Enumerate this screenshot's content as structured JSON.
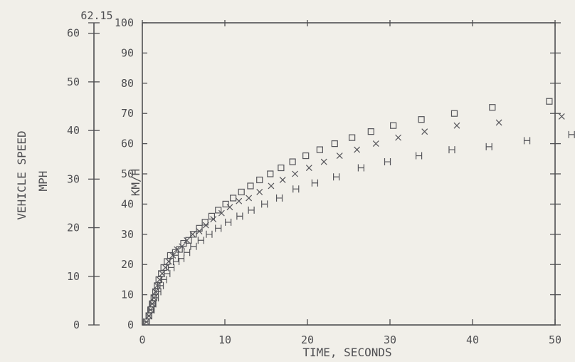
{
  "chart_data": {
    "type": "scatter",
    "title": "",
    "xlabel": "TIME, SECONDS",
    "ylabel_outer": "VEHICLE SPEED",
    "ylabel_outer_unit": "MPH",
    "ylabel_inner": "KM/H",
    "top_annotation": "62.15",
    "xlim": [
      0,
      50
    ],
    "ylim_kmh": [
      0,
      100
    ],
    "ylim_mph": [
      0,
      62.15
    ],
    "x_ticks": [
      "0",
      "10",
      "20",
      "30",
      "40",
      "50"
    ],
    "y_ticks_kmh": [
      "0",
      "10",
      "20",
      "30",
      "40",
      "50",
      "60",
      "70",
      "80",
      "90",
      "100"
    ],
    "y_ticks_mph": [
      "0",
      "10",
      "20",
      "30",
      "40",
      "50",
      "60"
    ],
    "grid": false,
    "legend": null,
    "series": [
      {
        "marker": "square",
        "x": [
          0.5,
          0.8,
          1.0,
          1.2,
          1.4,
          1.6,
          1.8,
          2.0,
          2.3,
          2.6,
          3.0,
          3.4,
          4.0,
          4.5,
          5.0,
          5.6,
          6.2,
          6.9,
          7.6,
          8.4,
          9.2,
          10.1,
          11.0,
          12.0,
          13.1,
          14.2,
          15.5,
          16.8,
          18.2,
          19.8,
          21.5,
          23.3,
          25.4,
          27.7,
          30.4,
          33.8,
          37.8,
          42.4,
          49.3
        ],
        "y": [
          1,
          3,
          5,
          7,
          9,
          11,
          13,
          15,
          17,
          19,
          21,
          23,
          24,
          25,
          27,
          28,
          30,
          32,
          34,
          36,
          38,
          40,
          42,
          44,
          46,
          48,
          50,
          52,
          54,
          56,
          58,
          60,
          62,
          64,
          66,
          68,
          70,
          72,
          74
        ]
      },
      {
        "marker": "x",
        "x": [
          0.5,
          0.8,
          1.0,
          1.2,
          1.4,
          1.6,
          1.8,
          2.1,
          2.4,
          2.8,
          3.2,
          3.7,
          4.2,
          4.8,
          5.4,
          6.1,
          6.9,
          7.7,
          8.6,
          9.6,
          10.6,
          11.7,
          12.9,
          14.2,
          15.6,
          17.0,
          18.5,
          20.2,
          22.0,
          23.9,
          26.0,
          28.3,
          31.0,
          34.2,
          38.1,
          43.2,
          50.8
        ],
        "y": [
          1,
          3,
          5,
          7,
          9,
          11,
          13,
          15,
          17,
          19,
          21,
          23,
          25,
          26,
          28,
          30,
          31,
          33,
          35,
          37,
          39,
          41,
          42,
          44,
          46,
          48,
          50,
          52,
          54,
          56,
          58,
          60,
          62,
          64,
          66,
          67,
          69
        ]
      },
      {
        "marker": "H",
        "x": [
          0.5,
          0.8,
          1.1,
          1.3,
          1.6,
          1.9,
          2.2,
          2.6,
          3.0,
          3.5,
          4.1,
          4.7,
          5.4,
          6.2,
          7.1,
          8.1,
          9.2,
          10.4,
          11.8,
          13.2,
          14.8,
          16.6,
          18.6,
          20.9,
          23.5,
          26.5,
          29.7,
          33.5,
          37.5,
          42.0,
          46.6,
          52.0
        ],
        "y": [
          1,
          3,
          5,
          7,
          9,
          11,
          13,
          15,
          17,
          19,
          21,
          22,
          24,
          26,
          28,
          30,
          32,
          34,
          36,
          38,
          40,
          42,
          45,
          47,
          49,
          52,
          54,
          56,
          58,
          59,
          61,
          63
        ]
      }
    ]
  }
}
